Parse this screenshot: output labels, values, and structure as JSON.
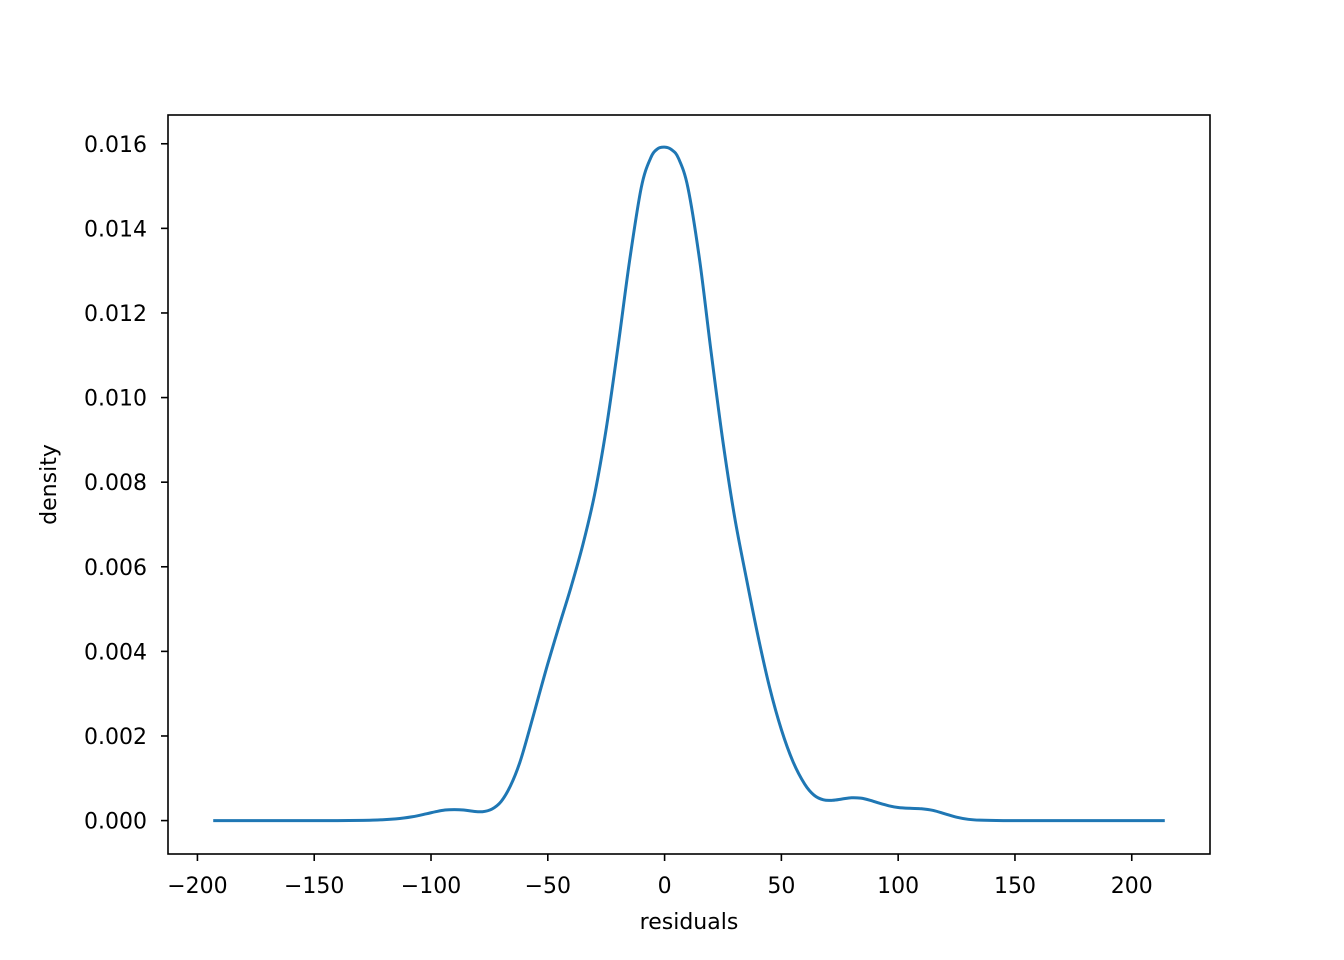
{
  "chart_data": {
    "type": "line",
    "title": "",
    "xlabel": "residuals",
    "ylabel": "density",
    "xlim": [
      -212.6,
      233.5
    ],
    "ylim": [
      -0.00079,
      0.01668
    ],
    "grid": false,
    "legend": "none",
    "x_ticks": [
      -200,
      -150,
      -100,
      -50,
      0,
      50,
      100,
      150,
      200
    ],
    "x_tick_labels": [
      "−200",
      "−150",
      "−100",
      "−50",
      "0",
      "50",
      "100",
      "150",
      "200"
    ],
    "y_ticks": [
      0,
      0.002,
      0.004,
      0.006,
      0.008,
      0.01,
      0.012,
      0.014,
      0.016
    ],
    "y_tick_labels": [
      "0.000",
      "0.002",
      "0.004",
      "0.006",
      "0.008",
      "0.010",
      "0.012",
      "0.014",
      "0.016"
    ],
    "series": [
      {
        "color": "#1f77b4",
        "x": [
          -192.6,
          -160,
          -140,
          -125,
          -115,
          -108,
          -102,
          -98,
          -94,
          -90,
          -86,
          -82,
          -78,
          -74,
          -70,
          -66,
          -62,
          -58,
          -54,
          -50,
          -45,
          -40,
          -35,
          -30,
          -25,
          -20,
          -15,
          -10,
          -6,
          -3,
          0,
          3,
          6,
          10,
          15,
          20,
          25,
          30,
          35,
          40,
          45,
          50,
          55,
          60,
          64,
          68,
          72,
          76,
          80,
          84,
          88,
          92,
          96,
          100,
          105,
          110,
          115,
          120,
          125,
          130,
          135,
          145,
          160,
          180,
          213.5
        ],
        "y": [
          0,
          0,
          0,
          1e-05,
          4e-05,
          9e-05,
          0.00016,
          0.00021,
          0.00025,
          0.00026,
          0.00025,
          0.00022,
          0.00021,
          0.00027,
          0.00045,
          0.00082,
          0.00137,
          0.00212,
          0.00292,
          0.00371,
          0.00463,
          0.00553,
          0.00652,
          0.0077,
          0.00926,
          0.01118,
          0.01323,
          0.01496,
          0.01566,
          0.01588,
          0.01592,
          0.01586,
          0.01565,
          0.01496,
          0.01325,
          0.01104,
          0.00895,
          0.00717,
          0.00573,
          0.00436,
          0.00314,
          0.00215,
          0.00139,
          0.00086,
          0.0006,
          0.00049,
          0.00048,
          0.00051,
          0.00054,
          0.00053,
          0.00048,
          0.00041,
          0.00035,
          0.00031,
          0.00029,
          0.00028,
          0.00024,
          0.00016,
          8e-05,
          3e-05,
          1e-05,
          0,
          0,
          0,
          0
        ]
      }
    ]
  }
}
